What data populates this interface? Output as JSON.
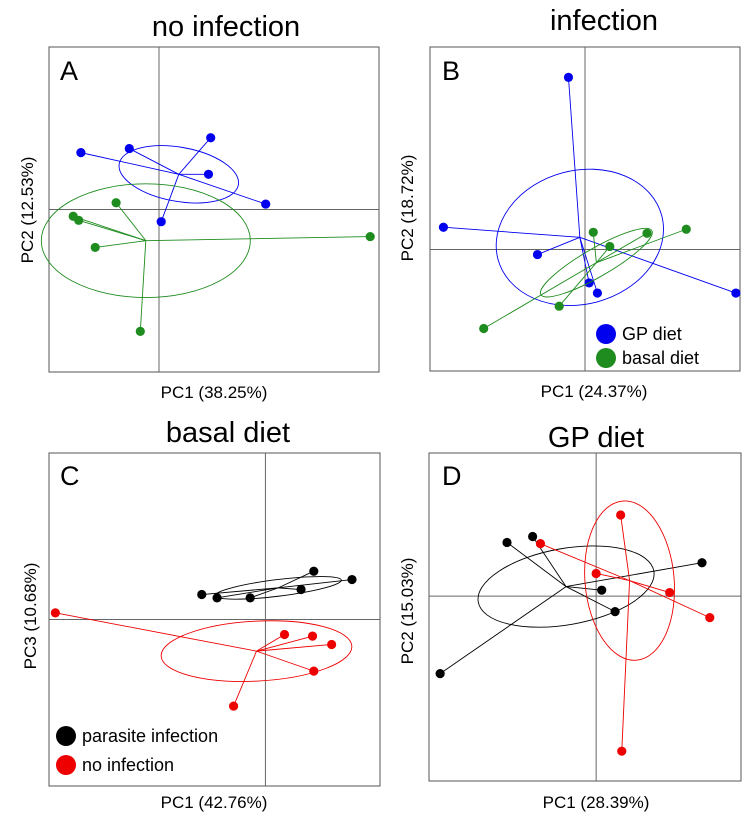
{
  "chart_data": [
    {
      "type": "scatter",
      "panel": "A",
      "title": "no infection",
      "xlabel": "PC1 (38.25%)",
      "ylabel": "PC2 (12.53%)",
      "xlim": [
        -1.0,
        2.0
      ],
      "ylim": [
        -1.2,
        1.2
      ],
      "axis_cross": [
        0,
        0
      ],
      "legend": null,
      "series": [
        {
          "color": "#0000ee",
          "points": [
            [
              -0.71,
              0.42
            ],
            [
              -0.27,
              0.45
            ],
            [
              0.47,
              0.53
            ],
            [
              0.45,
              0.26
            ],
            [
              0.97,
              0.04
            ],
            [
              0.02,
              -0.09
            ]
          ],
          "centroid": [
            0.18,
            0.26
          ],
          "ellipse": {
            "cx": 0.18,
            "cy": 0.26,
            "rx": 0.55,
            "ry": 0.2,
            "angle": 10
          }
        },
        {
          "color": "#1e8c1e",
          "points": [
            [
              -0.78,
              -0.05
            ],
            [
              -0.73,
              -0.08
            ],
            [
              -0.39,
              0.05
            ],
            [
              -0.58,
              -0.28
            ],
            [
              1.92,
              -0.2
            ],
            [
              -0.17,
              -0.9
            ]
          ],
          "centroid": [
            -0.12,
            -0.23
          ],
          "ellipse": {
            "cx": -0.12,
            "cy": -0.23,
            "rx": 0.95,
            "ry": 0.42,
            "angle": 0
          }
        }
      ]
    },
    {
      "type": "scatter",
      "panel": "B",
      "title": "infection",
      "xlabel": "PC1 (24.37%)",
      "ylabel": "PC2 (18.72%)",
      "xlim": [
        -1.5,
        1.5
      ],
      "ylim": [
        -1.2,
        2.0
      ],
      "axis_cross": [
        0,
        0
      ],
      "legend": {
        "position": "bottom-right",
        "entries": [
          {
            "label": "GP diet",
            "color": "#0000ee"
          },
          {
            "label": "basal diet",
            "color": "#1e8c1e"
          }
        ]
      },
      "series": [
        {
          "color": "#0000ee",
          "points": [
            [
              -0.16,
              1.7
            ],
            [
              -1.37,
              0.22
            ],
            [
              -0.46,
              -0.05
            ],
            [
              0.04,
              -0.33
            ],
            [
              0.12,
              -0.43
            ],
            [
              1.46,
              -0.43
            ]
          ],
          "centroid": [
            -0.05,
            0.12
          ],
          "ellipse": {
            "cx": -0.05,
            "cy": 0.12,
            "rx": 0.82,
            "ry": 0.66,
            "angle": -15
          }
        },
        {
          "color": "#1e8c1e",
          "points": [
            [
              0.08,
              0.17
            ],
            [
              0.24,
              0.03
            ],
            [
              0.6,
              0.16
            ],
            [
              0.98,
              0.2
            ],
            [
              -0.25,
              -0.56
            ],
            [
              -0.98,
              -0.78
            ]
          ],
          "centroid": [
            0.11,
            -0.13
          ],
          "ellipse": {
            "cx": 0.11,
            "cy": -0.13,
            "rx": 0.62,
            "ry": 0.14,
            "angle": -30
          }
        }
      ]
    },
    {
      "type": "scatter",
      "panel": "C",
      "title": "basal diet",
      "xlabel": "PC1 (42.76%)",
      "ylabel": "PC3 (10.68%)",
      "xlim": [
        -1.7,
        0.9
      ],
      "ylim": [
        -1.0,
        1.0
      ],
      "axis_cross": [
        0,
        0
      ],
      "legend": {
        "position": "bottom-left",
        "entries": [
          {
            "label": "parasite infection",
            "color": "#000000"
          },
          {
            "label": "no infection",
            "color": "#ee0000"
          }
        ]
      },
      "series": [
        {
          "color": "#000000",
          "points": [
            [
              -0.5,
              0.15
            ],
            [
              -0.38,
              0.13
            ],
            [
              -0.12,
              0.13
            ],
            [
              0.38,
              0.29
            ],
            [
              0.68,
              0.24
            ],
            [
              0.28,
              0.18
            ]
          ],
          "centroid": [
            0.1,
            0.19
          ],
          "ellipse": {
            "cx": 0.1,
            "cy": 0.19,
            "rx": 0.5,
            "ry": 0.05,
            "angle": -7
          }
        },
        {
          "color": "#ee0000",
          "points": [
            [
              -1.65,
              0.04
            ],
            [
              0.15,
              -0.09
            ],
            [
              0.37,
              -0.1
            ],
            [
              0.52,
              -0.15
            ],
            [
              0.38,
              -0.31
            ],
            [
              -0.25,
              -0.52
            ]
          ],
          "centroid": [
            -0.07,
            -0.19
          ],
          "ellipse": {
            "cx": -0.07,
            "cy": -0.19,
            "rx": 0.75,
            "ry": 0.18,
            "angle": -3
          }
        }
      ]
    },
    {
      "type": "scatter",
      "panel": "D",
      "title": "GP diet",
      "xlabel": "PC1 (28.39%)",
      "ylabel": "PC2 (15.03%)",
      "xlim": [
        -1.5,
        1.3
      ],
      "ylim": [
        -1.55,
        1.2
      ],
      "axis_cross": [
        0,
        0
      ],
      "legend": null,
      "series": [
        {
          "color": "#000000",
          "points": [
            [
              -0.8,
              0.45
            ],
            [
              -0.57,
              0.5
            ],
            [
              0.05,
              0.05
            ],
            [
              0.17,
              -0.13
            ],
            [
              0.95,
              0.28
            ],
            [
              -1.4,
              -0.65
            ]
          ],
          "centroid": [
            -0.27,
            0.08
          ],
          "ellipse": {
            "cx": -0.27,
            "cy": 0.08,
            "rx": 0.8,
            "ry": 0.32,
            "angle": -10
          }
        },
        {
          "color": "#ee0000",
          "points": [
            [
              -0.5,
              0.44
            ],
            [
              0.0,
              0.19
            ],
            [
              0.22,
              0.68
            ],
            [
              0.66,
              0.03
            ],
            [
              1.02,
              -0.18
            ],
            [
              0.23,
              -1.3
            ]
          ],
          "centroid": [
            0.3,
            0.13
          ],
          "ellipse": {
            "cx": 0.3,
            "cy": 0.13,
            "rx": 0.4,
            "ry": 0.67,
            "angle": -5
          }
        }
      ]
    }
  ]
}
